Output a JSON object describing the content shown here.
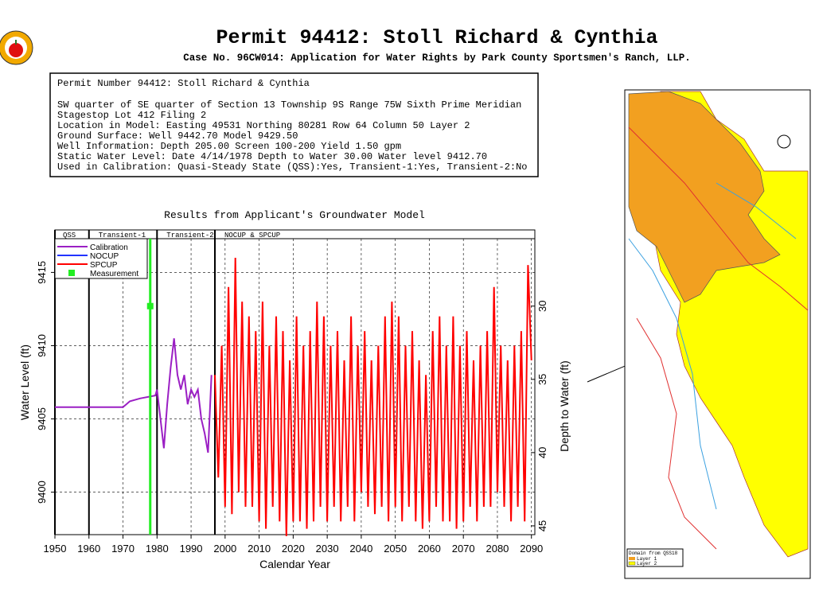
{
  "header": {
    "title": "Permit 94412:  Stoll Richard & Cynthia",
    "subtitle": "Case No. 96CW014: Application for Water Rights by Park County Sportsmen's Ranch, LLP."
  },
  "info": {
    "heading": "Permit Number 94412: Stoll Richard & Cynthia",
    "lines": [
      "SW quarter of SE quarter of Section 13 Township 9S Range 75W Sixth Prime Meridian",
      "Stagestop Lot 412 Filing 2",
      "Location in Model: Easting 49531 Northing  80281 Row   64 Column 50 Layer 2",
      "Ground Surface: Well   9442.70 Model   9429.50",
      "Well Information: Depth   205.00 Screen 100-200 Yield      1.50 gpm",
      "Static Water Level: Date   4/14/1978 Depth to Water    30.00 Water level   9412.70",
      "Used in Calibration: Quasi-Steady State (QSS):Yes, Transient-1:Yes, Transient-2:No"
    ]
  },
  "chart_data": {
    "type": "line",
    "title": "Results from Applicant's Groundwater Model",
    "xlabel": "Calendar Year",
    "ylabel": "Water Level (ft)",
    "y2label": "Depth to Water (ft)",
    "xlim": [
      1950,
      2091
    ],
    "ylim": [
      9397.1,
      9417.9
    ],
    "y2lim": [
      45.6,
      24.8
    ],
    "xticks": [
      1950,
      1960,
      1970,
      1980,
      1990,
      2000,
      2010,
      2020,
      2030,
      2040,
      2050,
      2060,
      2070,
      2080,
      2090
    ],
    "yticks": [
      9400,
      9405,
      9410,
      9415
    ],
    "y2ticks": [
      30,
      35,
      40,
      45
    ],
    "grid": true,
    "periods": [
      {
        "label": "QSS",
        "start": 1950
      },
      {
        "label": "Transient-1",
        "start": 1960
      },
      {
        "label": "Transient-2",
        "start": 1980
      },
      {
        "label": "NOCUP & SPCUP",
        "start": 1997
      }
    ],
    "series": [
      {
        "name": "Calibration",
        "color": "#9b1fc4",
        "x": [
          1950,
          1960,
          1970,
          1972,
          1975,
          1979.5,
          1980,
          1981,
          1982,
          1983,
          1984,
          1985,
          1986,
          1987,
          1988,
          1989,
          1990,
          1991,
          1992,
          1993,
          1994,
          1995,
          1996
        ],
        "values": [
          9405.8,
          9405.8,
          9405.8,
          9406.2,
          9406.4,
          9406.6,
          9407,
          9405,
          9403,
          9406,
          9408.5,
          9410.5,
          9408,
          9407,
          9408,
          9406,
          9407,
          9406.5,
          9407,
          9405,
          9404,
          9402.7,
          9408
        ]
      },
      {
        "name": "NOCUP",
        "color": "#2233ff",
        "x": [],
        "values": []
      },
      {
        "name": "SPCUP",
        "color": "#ff0000",
        "x": [
          1997,
          1998,
          1999,
          2000,
          2001,
          2002,
          2003,
          2004,
          2005,
          2006,
          2007,
          2008,
          2009,
          2010,
          2011,
          2012,
          2013,
          2014,
          2015,
          2016,
          2017,
          2018,
          2019,
          2020,
          2021,
          2022,
          2023,
          2024,
          2025,
          2026,
          2027,
          2028,
          2029,
          2030,
          2031,
          2032,
          2033,
          2034,
          2035,
          2036,
          2037,
          2038,
          2039,
          2040,
          2041,
          2042,
          2043,
          2044,
          2045,
          2046,
          2047,
          2048,
          2049,
          2050,
          2051,
          2052,
          2053,
          2054,
          2055,
          2056,
          2057,
          2058,
          2059,
          2060,
          2061,
          2062,
          2063,
          2064,
          2065,
          2066,
          2067,
          2068,
          2069,
          2070,
          2071,
          2072,
          2073,
          2074,
          2075,
          2076,
          2077,
          2078,
          2079,
          2080,
          2081,
          2082,
          2083,
          2084,
          2085,
          2086,
          2087,
          2088,
          2089,
          2090
        ],
        "values": [
          9408,
          9401,
          9410,
          9399,
          9414,
          9398.5,
          9416,
          9400,
          9413,
          9399,
          9412,
          9399,
          9411,
          9398,
          9413,
          9397.5,
          9410,
          9399,
          9412,
          9398,
          9411,
          9397,
          9409,
          9398,
          9412,
          9398,
          9410,
          9397.5,
          9411,
          9398,
          9413,
          9399,
          9412,
          9398,
          9410,
          9399,
          9411,
          9398,
          9409,
          9399,
          9412,
          9398,
          9410,
          9400,
          9411,
          9399,
          9409,
          9398.5,
          9410,
          9399,
          9412,
          9398,
          9413,
          9399,
          9412,
          9398,
          9410,
          9399,
          9411,
          9398,
          9409,
          9397.5,
          9408,
          9398,
          9411,
          9399,
          9412,
          9398,
          9410,
          9398,
          9412,
          9397.5,
          9410,
          9398,
          9411,
          9399,
          9409,
          9398,
          9410,
          9399,
          9411,
          9399,
          9414,
          9400,
          9410,
          9399,
          9409,
          9398,
          9410,
          9399,
          9411,
          9398,
          9415.5,
          9409
        ]
      },
      {
        "name": "Measurement",
        "color": "#22ee22",
        "marker": "square",
        "x": [
          1978
        ],
        "values": [
          9412.7
        ]
      }
    ]
  },
  "map": {
    "legend_title": "Domain from QSS18",
    "legend_items": [
      "Layer 1",
      "Layer 2"
    ]
  }
}
